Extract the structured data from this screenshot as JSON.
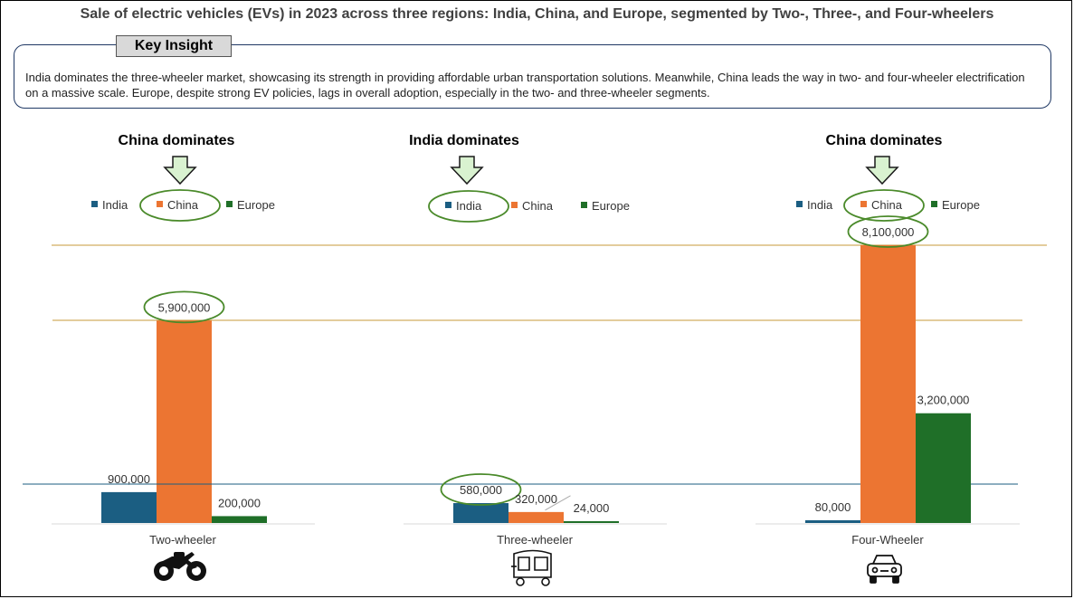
{
  "title": "Sale of electric vehicles (EVs) in 2023 across three regions: India, China, and Europe, segmented by Two-, Three-, and Four-wheelers",
  "insight": {
    "label": "Key Insight",
    "text": "India dominates the three-wheeler market, showcasing its strength in providing affordable urban transportation solutions. Meanwhile, China leads the way in two- and four-wheeler electrification on a massive scale. Europe, despite strong EV policies, lags in overall adoption, especially in the two- and three-wheeler segments."
  },
  "colors": {
    "India": "#1b5e82",
    "China": "#ec7532",
    "Europe": "#1f6f28",
    "arrow_fill": "#d9f2d0",
    "highlight": "#4a8a2a"
  },
  "icons": [
    "motorcycle-icon",
    "auto-rickshaw-icon",
    "car-icon"
  ],
  "chart_data": [
    {
      "type": "bar",
      "categories": [
        "Two-wheeler"
      ],
      "series": [
        {
          "name": "India",
          "values": [
            900000
          ],
          "label": "900,000"
        },
        {
          "name": "China",
          "values": [
            5900000
          ],
          "label": "5,900,000"
        },
        {
          "name": "Europe",
          "values": [
            200000
          ],
          "label": "200,000"
        }
      ],
      "annotation": "China dominates",
      "highlight_series": "China",
      "reference_line_value": 5900000
    },
    {
      "type": "bar",
      "categories": [
        "Three-wheeler"
      ],
      "series": [
        {
          "name": "India",
          "values": [
            580000
          ],
          "label": "580,000"
        },
        {
          "name": "China",
          "values": [
            320000
          ],
          "label": "320,000"
        },
        {
          "name": "Europe",
          "values": [
            24000
          ],
          "label": "24,000"
        }
      ],
      "annotation": "India dominates",
      "highlight_series": "India",
      "reference_line_value": 580000
    },
    {
      "type": "bar",
      "categories": [
        "Four-Wheeler"
      ],
      "series": [
        {
          "name": "India",
          "values": [
            80000
          ],
          "label": "80,000"
        },
        {
          "name": "China",
          "values": [
            8100000
          ],
          "label": "8,100,000"
        },
        {
          "name": "Europe",
          "values": [
            3200000
          ],
          "label": "3,200,000"
        }
      ],
      "annotation": "China dominates",
      "highlight_series": "China",
      "reference_line_value": 8100000
    }
  ]
}
